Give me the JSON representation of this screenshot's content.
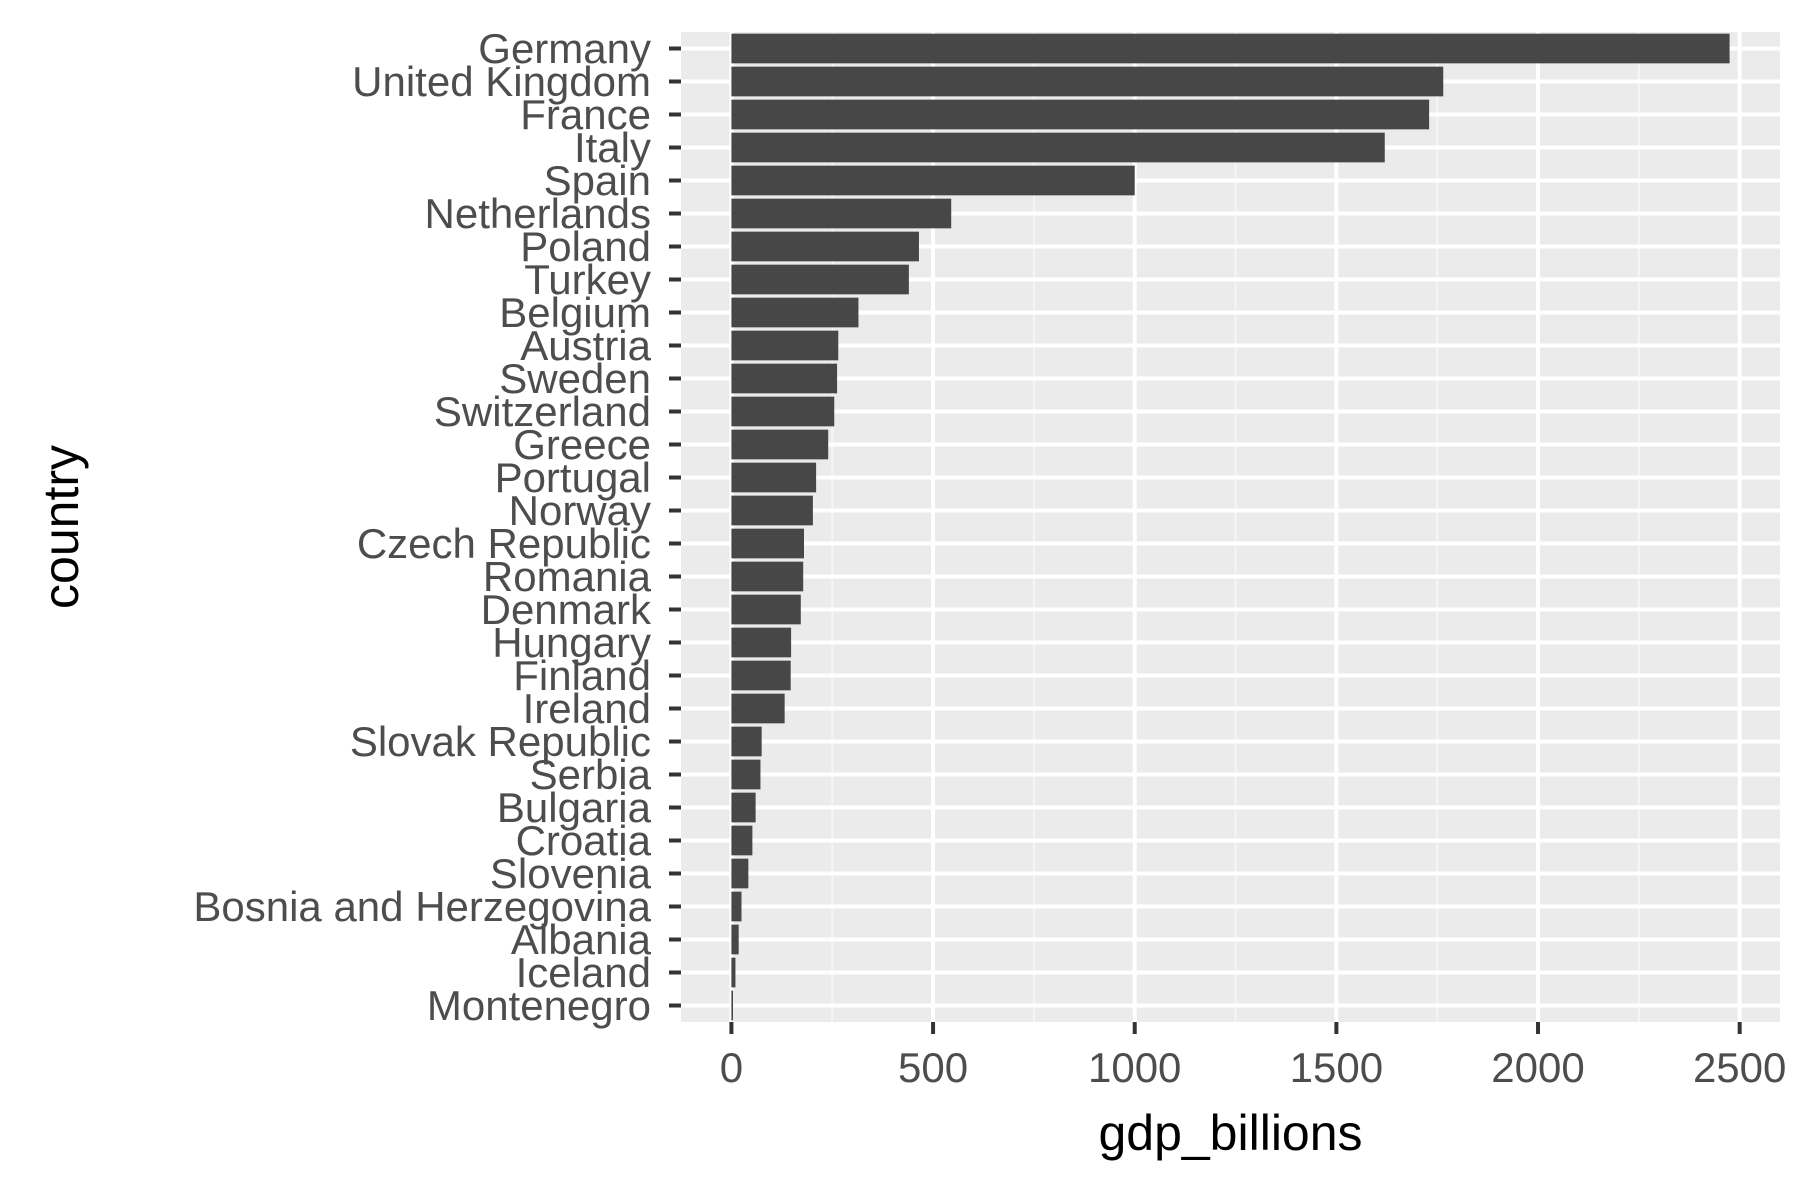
{
  "chart_data": {
    "type": "bar",
    "orientation": "horizontal",
    "title": "",
    "xlabel": "gdp_billions",
    "ylabel": "country",
    "xlim": [
      -125,
      2600
    ],
    "xticks": [
      0,
      500,
      1000,
      1500,
      2000,
      2500
    ],
    "grid": true,
    "colors": {
      "bar": "#474747",
      "panel": "#ebebeb",
      "grid_major": "#ffffff",
      "grid_minor": "#f5f5f5",
      "tick_mark": "#333333"
    },
    "categories": [
      "Germany",
      "United Kingdom",
      "France",
      "Italy",
      "Spain",
      "Netherlands",
      "Poland",
      "Turkey",
      "Belgium",
      "Austria",
      "Sweden",
      "Switzerland",
      "Greece",
      "Portugal",
      "Norway",
      "Czech Republic",
      "Romania",
      "Denmark",
      "Hungary",
      "Finland",
      "Ireland",
      "Slovak Republic",
      "Serbia",
      "Bulgaria",
      "Croatia",
      "Slovenia",
      "Bosnia and Herzegovina",
      "Albania",
      "Iceland",
      "Montenegro"
    ],
    "values": [
      2475,
      1765,
      1730,
      1620,
      1000,
      545,
      465,
      440,
      315,
      265,
      262,
      255,
      240,
      210,
      202,
      180,
      178,
      172,
      148,
      147,
      132,
      75,
      72,
      60,
      52,
      42,
      25,
      18,
      10,
      4
    ]
  }
}
